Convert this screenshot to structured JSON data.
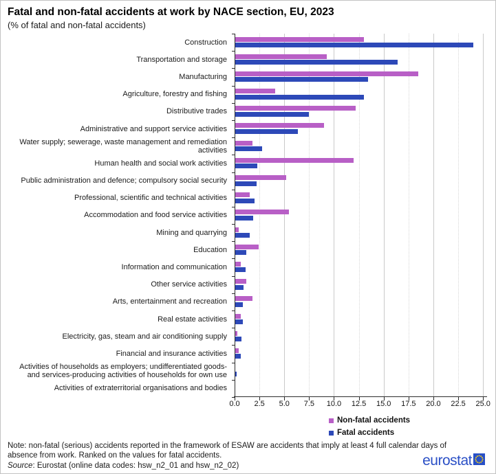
{
  "title": "Fatal and non-fatal accidents at work by NACE section, EU, 2023",
  "subtitle": "(% of fatal and non-fatal accidents)",
  "chart_data": {
    "type": "bar",
    "orientation": "horizontal",
    "title": "Fatal and non-fatal accidents at work by NACE section, EU, 2023",
    "subtitle": "(% of fatal and non-fatal accidents)",
    "xlabel": "",
    "ylabel": "",
    "xlim": [
      0,
      25.4
    ],
    "xticks": [
      0.0,
      2.5,
      5.0,
      7.5,
      10.0,
      12.5,
      15.0,
      17.5,
      20.0,
      22.5,
      25.0
    ],
    "grid": "vertical",
    "legend_position": "bottom-right",
    "sort_note": "ranked descending on fatal accidents",
    "categories": [
      "Construction",
      "Transportation and storage",
      "Manufacturing",
      "Agriculture, forestry and fishing",
      "Distributive trades",
      "Administrative and support service activities",
      "Water supply; sewerage, waste management and remediation activities",
      "Human health and social work activities",
      "Public administration and defence; compulsory social security",
      "Professional, scientific and technical activities",
      "Accommodation and food service activities",
      "Mining and quarrying",
      "Education",
      "Information and communication",
      "Other service activities",
      "Arts, entertainment and recreation",
      "Real estate activities",
      "Electricity, gas, steam and air conditioning supply",
      "Financial and insurance activities",
      "Activities of households as employers; undifferentiated goods- and services-producing activities of households for own use",
      "Activities of extraterritorial organisations and bodies"
    ],
    "series": [
      {
        "name": "Non-fatal accidents",
        "color": "#b85fc6",
        "values": [
          13.0,
          9.3,
          18.5,
          4.1,
          12.2,
          9.0,
          1.8,
          12.0,
          5.2,
          1.5,
          5.5,
          0.4,
          2.4,
          0.6,
          1.2,
          1.8,
          0.6,
          0.3,
          0.4,
          0.1,
          0.0
        ]
      },
      {
        "name": "Fatal accidents",
        "color": "#2d49b8",
        "values": [
          24.0,
          16.4,
          13.4,
          13.0,
          7.5,
          6.4,
          2.8,
          2.3,
          2.2,
          2.0,
          1.9,
          1.5,
          1.2,
          1.1,
          0.9,
          0.8,
          0.8,
          0.7,
          0.6,
          0.2,
          0.0
        ]
      }
    ]
  },
  "footer": {
    "note": "Note: non-fatal (serious) accidents reported in the framework of ESAW are accidents that imply at least 4 full calendar days of absence from work. Ranked on the values for fatal accidents.",
    "source_label": "Source",
    "source_rest": ": Eurostat (online data codes: hsw_n2_01 and hsw_n2_02)"
  },
  "logo": {
    "text": "eurostat"
  }
}
